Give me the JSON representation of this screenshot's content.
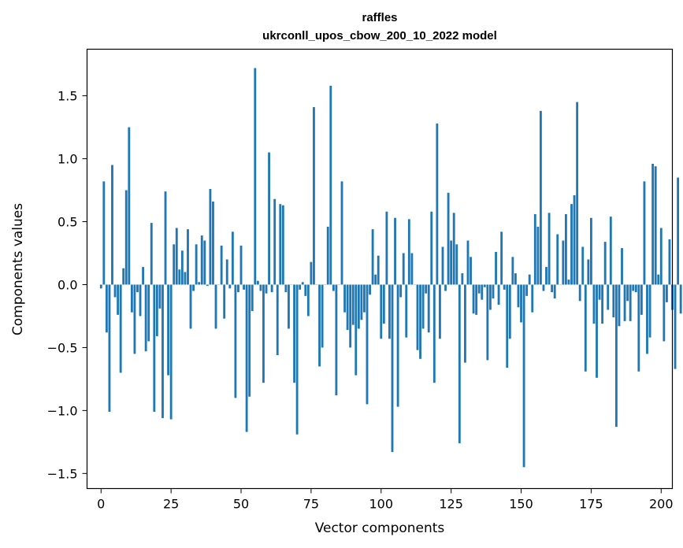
{
  "chart_data": {
    "type": "bar",
    "title": "raffles",
    "subtitle": "ukrconll_upos_cbow_200_10_2022 model",
    "xlabel": "Vector components",
    "ylabel": "Components values",
    "xlim": [
      -5,
      204
    ],
    "ylim": [
      -1.62,
      1.87
    ],
    "xticks": [
      0,
      25,
      50,
      75,
      100,
      125,
      150,
      175,
      200
    ],
    "xtick_labels": [
      "0",
      "25",
      "50",
      "75",
      "100",
      "125",
      "150",
      "175",
      "200"
    ],
    "yticks": [
      -1.5,
      -1.0,
      -0.5,
      0.0,
      0.5,
      1.0,
      1.5
    ],
    "ytick_labels": [
      "−1.5",
      "−1.0",
      "−0.5",
      "0.0",
      "0.5",
      "1.0",
      "1.5"
    ],
    "grid": false,
    "bar_color": "#1f77b4",
    "series": [
      {
        "values": [
          -0.03,
          0.82,
          -0.38,
          -1.01,
          0.95,
          -0.1,
          -0.24,
          -0.7,
          0.13,
          0.75,
          1.25,
          -0.22,
          -0.55,
          -0.06,
          -0.25,
          0.14,
          -0.53,
          -0.45,
          0.49,
          -1.01,
          -0.41,
          -0.19,
          -1.06,
          0.74,
          -0.72,
          -1.07,
          0.32,
          0.45,
          0.12,
          0.27,
          0.1,
          0.44,
          -0.35,
          -0.05,
          0.32,
          0.02,
          0.39,
          0.35,
          -0.01,
          0.76,
          0.66,
          -0.35,
          0.0,
          0.31,
          -0.27,
          0.2,
          -0.03,
          0.42,
          -0.9,
          -0.06,
          0.31,
          -0.04,
          -1.17,
          -0.89,
          -0.21,
          1.72,
          0.03,
          -0.05,
          -0.78,
          -0.07,
          1.05,
          -0.06,
          0.68,
          -0.56,
          0.64,
          0.63,
          -0.06,
          -0.35,
          0.0,
          -0.78,
          -1.19,
          -0.04,
          0.02,
          -0.09,
          -0.25,
          0.18,
          1.41,
          0.0,
          -0.65,
          -0.5,
          0.0,
          0.46,
          1.58,
          -0.05,
          -0.88,
          0.0,
          0.82,
          -0.22,
          -0.36,
          -0.5,
          -0.32,
          -0.72,
          -0.35,
          -0.28,
          -0.22,
          -0.95,
          -0.08,
          0.44,
          0.08,
          0.23,
          -0.43,
          -0.31,
          0.58,
          -0.43,
          -1.33,
          0.53,
          -0.97,
          -0.1,
          0.25,
          -0.42,
          0.52,
          0.25,
          0.0,
          -0.52,
          -0.59,
          -0.35,
          -0.07,
          -0.38,
          0.58,
          -0.78,
          1.28,
          -0.43,
          0.3,
          -0.05,
          0.73,
          0.35,
          0.57,
          0.32,
          -1.26,
          0.09,
          -0.62,
          0.35,
          0.22,
          -0.23,
          -0.24,
          -0.07,
          -0.12,
          -0.02,
          -0.6,
          -0.2,
          -0.11,
          0.26,
          -0.16,
          0.42,
          -0.04,
          -0.66,
          -0.43,
          0.22,
          0.09,
          -0.18,
          -0.3,
          -1.45,
          -0.09,
          0.08,
          -0.22,
          0.56,
          0.46,
          1.38,
          -0.05,
          0.14,
          0.57,
          -0.06,
          -0.11,
          0.4,
          0.0,
          0.35,
          0.56,
          0.04,
          0.64,
          0.71,
          1.45,
          -0.13,
          0.3,
          -0.69,
          0.2,
          0.53,
          -0.31,
          -0.74,
          -0.12,
          -0.31,
          0.34,
          -0.2,
          0.54,
          -0.26,
          -1.13,
          -0.33,
          0.29,
          -0.29,
          -0.13,
          -0.29,
          -0.05,
          -0.06,
          -0.69,
          -0.24,
          0.82,
          -0.55,
          -0.42,
          0.96,
          0.94,
          0.08,
          0.45,
          -0.45,
          -0.14,
          0.36,
          -0.2,
          -0.67,
          0.85,
          -0.23
        ]
      }
    ]
  }
}
